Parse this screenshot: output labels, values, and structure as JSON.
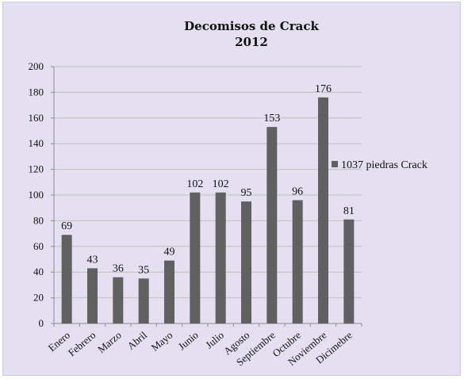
{
  "chart_data": {
    "type": "bar",
    "title": "Decomisos de Crack",
    "subtitle": "2012",
    "categories": [
      "Enero",
      "Febrero",
      "Marzo",
      "Abril",
      "Mayo",
      "Junio",
      "Julio",
      "Agosto",
      "Septiembre",
      "Octubre",
      "Noviembre",
      "Dicimebre"
    ],
    "series": [
      {
        "name": "1037 piedras Crack",
        "values": [
          69,
          43,
          36,
          35,
          49,
          102,
          102,
          95,
          153,
          96,
          176,
          81
        ]
      }
    ],
    "ylim": [
      0,
      200
    ],
    "yticks": [
      0,
      20,
      40,
      60,
      80,
      100,
      120,
      140,
      160,
      180,
      200
    ],
    "grid": true,
    "legend_position": "right",
    "colors": {
      "bar": "#606060",
      "background": "#e4e0f1",
      "grid": "#bfbfbf"
    }
  }
}
